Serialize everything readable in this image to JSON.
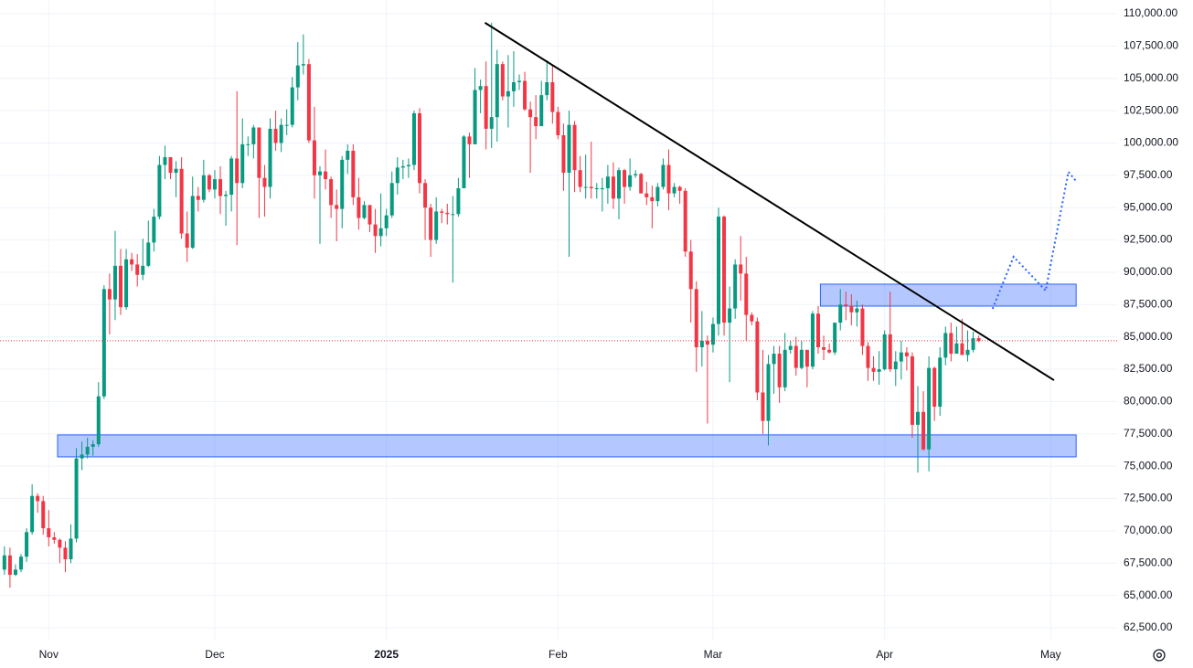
{
  "chart_data": {
    "type": "candlestick",
    "up_color": "#089981",
    "down_color": "#f23645",
    "xlim": [
      -0.8,
      201
    ],
    "ylim": [
      61580,
      111060
    ],
    "xticks": [
      {
        "value": 8,
        "label": "Nov"
      },
      {
        "value": 38,
        "label": "Dec"
      },
      {
        "value": 69,
        "label": "2025"
      },
      {
        "value": 100,
        "label": "Feb"
      },
      {
        "value": 128,
        "label": "Mar"
      },
      {
        "value": 159,
        "label": "Apr"
      },
      {
        "value": 189,
        "label": "May"
      }
    ],
    "yticks": [
      {
        "value": 62500,
        "label": "62,500.00"
      },
      {
        "value": 65000,
        "label": "65,000.00"
      },
      {
        "value": 67500,
        "label": "67,500.00"
      },
      {
        "value": 70000,
        "label": "70,000.00"
      },
      {
        "value": 72500,
        "label": "72,500.00"
      },
      {
        "value": 75000,
        "label": "75,000.00"
      },
      {
        "value": 77500,
        "label": "77,500.00"
      },
      {
        "value": 80000,
        "label": "80,000.00"
      },
      {
        "value": 82500,
        "label": "82,500.00"
      },
      {
        "value": 85000,
        "label": "85,000.00"
      },
      {
        "value": 87500,
        "label": "87,500.00"
      },
      {
        "value": 90000,
        "label": "90,000.00"
      },
      {
        "value": 92500,
        "label": "92,500.00"
      },
      {
        "value": 95000,
        "label": "95,000.00"
      },
      {
        "value": 97500,
        "label": "97,500.00"
      },
      {
        "value": 100000,
        "label": "100,000.00"
      },
      {
        "value": 102500,
        "label": "102,500.00"
      },
      {
        "value": 105000,
        "label": "105,000.00"
      },
      {
        "value": 107500,
        "label": "107,500.00"
      },
      {
        "value": 110000,
        "label": "110,000.00"
      }
    ],
    "grid": true,
    "price_line": true,
    "ohlc": [
      [
        67000,
        68800,
        66600,
        68100
      ],
      [
        68100,
        68700,
        65600,
        66600
      ],
      [
        66600,
        67400,
        66500,
        67000
      ],
      [
        67000,
        68200,
        66800,
        68000
      ],
      [
        68000,
        70200,
        67600,
        69900
      ],
      [
        69900,
        73600,
        69700,
        72700
      ],
      [
        72700,
        72900,
        71400,
        72300
      ],
      [
        72300,
        72700,
        69700,
        70200
      ],
      [
        70200,
        71600,
        68800,
        69500
      ],
      [
        69500,
        69900,
        69000,
        69300
      ],
      [
        69300,
        69400,
        67500,
        68700
      ],
      [
        68700,
        69200,
        66800,
        67800
      ],
      [
        67800,
        70500,
        67500,
        69400
      ],
      [
        69400,
        76400,
        69100,
        75600
      ],
      [
        75600,
        76900,
        74700,
        75900
      ],
      [
        75900,
        77200,
        75600,
        76500
      ],
      [
        76500,
        77000,
        75800,
        76700
      ],
      [
        76700,
        81500,
        76500,
        80400
      ],
      [
        80400,
        89000,
        80200,
        88700
      ],
      [
        88700,
        89900,
        85200,
        87900
      ],
      [
        87900,
        93200,
        86300,
        90500
      ],
      [
        90500,
        91800,
        86700,
        87300
      ],
      [
        87300,
        91800,
        87100,
        91000
      ],
      [
        91000,
        91500,
        90100,
        90600
      ],
      [
        90600,
        91400,
        88900,
        89800
      ],
      [
        89800,
        92600,
        89400,
        90500
      ],
      [
        90500,
        94000,
        90400,
        92300
      ],
      [
        92300,
        94900,
        91600,
        94300
      ],
      [
        94300,
        99000,
        94100,
        98300
      ],
      [
        98300,
        99800,
        97200,
        98900
      ],
      [
        98900,
        98900,
        97200,
        97700
      ],
      [
        97700,
        98600,
        95800,
        98000
      ],
      [
        98000,
        98900,
        92600,
        93000
      ],
      [
        93000,
        94700,
        90800,
        91900
      ],
      [
        91900,
        97400,
        91800,
        95900
      ],
      [
        95900,
        96600,
        94700,
        95600
      ],
      [
        95600,
        98700,
        95400,
        97500
      ],
      [
        97500,
        97600,
        96200,
        96400
      ],
      [
        96400,
        97900,
        95700,
        97200
      ],
      [
        97200,
        98200,
        94500,
        95900
      ],
      [
        95900,
        96300,
        93600,
        96000
      ],
      [
        96000,
        99000,
        94700,
        98800
      ],
      [
        98800,
        104000,
        92100,
        96900
      ],
      [
        96900,
        101900,
        96500,
        99900
      ],
      [
        99900,
        100500,
        99000,
        99900
      ],
      [
        99900,
        101400,
        98800,
        101200
      ],
      [
        101200,
        101200,
        94200,
        97300
      ],
      [
        97300,
        98300,
        94300,
        96600
      ],
      [
        96600,
        101900,
        95700,
        101100
      ],
      [
        101100,
        102500,
        99400,
        100000
      ],
      [
        100000,
        101900,
        99300,
        101400
      ],
      [
        101400,
        102600,
        100600,
        101400
      ],
      [
        101400,
        105100,
        101200,
        104300
      ],
      [
        104300,
        107800,
        103300,
        106000
      ],
      [
        106000,
        108400,
        105300,
        106100
      ],
      [
        106100,
        106500,
        100000,
        100200
      ],
      [
        100200,
        102800,
        95700,
        97500
      ],
      [
        97500,
        98200,
        92200,
        97800
      ],
      [
        97800,
        99500,
        96400,
        97200
      ],
      [
        97200,
        97400,
        94200,
        95200
      ],
      [
        95200,
        96400,
        92400,
        94900
      ],
      [
        94900,
        99000,
        93400,
        98700
      ],
      [
        98700,
        99900,
        97600,
        99400
      ],
      [
        99400,
        99900,
        95200,
        95800
      ],
      [
        95800,
        97300,
        93300,
        94200
      ],
      [
        94200,
        95500,
        94100,
        95200
      ],
      [
        95200,
        95200,
        93100,
        93700
      ],
      [
        93700,
        94900,
        91500,
        92800
      ],
      [
        92800,
        96100,
        92000,
        93400
      ],
      [
        93400,
        94900,
        92800,
        94400
      ],
      [
        94400,
        97800,
        94200,
        96900
      ],
      [
        96900,
        98900,
        96000,
        98100
      ],
      [
        98100,
        98700,
        97200,
        98200
      ],
      [
        98200,
        98800,
        97300,
        98300
      ],
      [
        98300,
        102500,
        97900,
        102300
      ],
      [
        102300,
        102700,
        96100,
        96900
      ],
      [
        96900,
        97200,
        92500,
        95000
      ],
      [
        95000,
        95300,
        91200,
        92500
      ],
      [
        92500,
        95800,
        92200,
        94700
      ],
      [
        94700,
        94900,
        93800,
        94600
      ],
      [
        94600,
        95300,
        93700,
        94500
      ],
      [
        94500,
        95900,
        89200,
        94500
      ],
      [
        94500,
        97300,
        94300,
        96500
      ],
      [
        96500,
        100600,
        96500,
        100500
      ],
      [
        100500,
        100800,
        97300,
        99900
      ],
      [
        99900,
        105800,
        99900,
        104100
      ],
      [
        104100,
        104900,
        102300,
        104400
      ],
      [
        104400,
        106300,
        99500,
        101100
      ],
      [
        101100,
        109300,
        99600,
        102000
      ],
      [
        102000,
        107200,
        100100,
        106100
      ],
      [
        106100,
        106300,
        103300,
        103600
      ],
      [
        103600,
        106800,
        101200,
        104000
      ],
      [
        104000,
        107100,
        102800,
        104700
      ],
      [
        104700,
        105300,
        104100,
        104800
      ],
      [
        104800,
        105500,
        102500,
        102600
      ],
      [
        102600,
        103200,
        97700,
        102000
      ],
      [
        102000,
        103700,
        100300,
        101300
      ],
      [
        101300,
        104800,
        101300,
        103700
      ],
      [
        103700,
        106400,
        103300,
        104700
      ],
      [
        104700,
        106000,
        101500,
        102400
      ],
      [
        102400,
        102800,
        100300,
        100600
      ],
      [
        100600,
        101500,
        96300,
        97700
      ],
      [
        97700,
        102500,
        91200,
        101400
      ],
      [
        101400,
        101700,
        96200,
        97900
      ],
      [
        97900,
        99000,
        96200,
        96600
      ],
      [
        96600,
        99100,
        95700,
        96600
      ],
      [
        96600,
        100100,
        95700,
        96500
      ],
      [
        96500,
        96900,
        95700,
        96500
      ],
      [
        96500,
        97300,
        94700,
        96500
      ],
      [
        96500,
        98300,
        95300,
        97400
      ],
      [
        97400,
        98500,
        94900,
        95700
      ],
      [
        95700,
        98100,
        94100,
        97900
      ],
      [
        97900,
        98000,
        95300,
        96600
      ],
      [
        96600,
        98800,
        96300,
        97500
      ],
      [
        97500,
        97900,
        97300,
        97600
      ],
      [
        97600,
        97700,
        96100,
        96100
      ],
      [
        96100,
        97000,
        95200,
        95800
      ],
      [
        95800,
        96700,
        93400,
        95500
      ],
      [
        95500,
        96900,
        95100,
        96600
      ],
      [
        96600,
        98800,
        96400,
        98300
      ],
      [
        98300,
        99500,
        94800,
        96100
      ],
      [
        96100,
        96900,
        95800,
        96600
      ],
      [
        96600,
        96700,
        95300,
        96300
      ],
      [
        96300,
        96500,
        91200,
        91600
      ],
      [
        91600,
        92500,
        86100,
        88700
      ],
      [
        88700,
        89300,
        82300,
        84200
      ],
      [
        84200,
        87000,
        82700,
        84700
      ],
      [
        84700,
        85100,
        78300,
        84400
      ],
      [
        84400,
        86500,
        83800,
        86000
      ],
      [
        86000,
        95000,
        85100,
        94300
      ],
      [
        94300,
        94400,
        85100,
        86100
      ],
      [
        86100,
        88900,
        81500,
        87200
      ],
      [
        87200,
        91000,
        86400,
        90600
      ],
      [
        90600,
        92800,
        87800,
        89900
      ],
      [
        89900,
        91200,
        84700,
        86700
      ],
      [
        86700,
        86900,
        85900,
        86200
      ],
      [
        86200,
        86500,
        80100,
        80700
      ],
      [
        80700,
        84000,
        77500,
        78500
      ],
      [
        78500,
        83600,
        76600,
        82900
      ],
      [
        82900,
        84300,
        80600,
        83700
      ],
      [
        83700,
        84300,
        79900,
        81100
      ],
      [
        81100,
        85300,
        80800,
        84000
      ],
      [
        84000,
        84700,
        83700,
        84300
      ],
      [
        84300,
        85000,
        82000,
        82600
      ],
      [
        82600,
        84700,
        82500,
        84000
      ],
      [
        84000,
        84000,
        81100,
        82700
      ],
      [
        82700,
        87000,
        82500,
        86800
      ],
      [
        86800,
        87400,
        83700,
        84200
      ],
      [
        84200,
        85100,
        83200,
        84000
      ],
      [
        84000,
        84500,
        83700,
        83800
      ],
      [
        83800,
        86100,
        83600,
        86100
      ],
      [
        86100,
        88700,
        85500,
        87500
      ],
      [
        87500,
        88500,
        86300,
        87400
      ],
      [
        87400,
        88300,
        85900,
        86900
      ],
      [
        86900,
        87800,
        85800,
        87200
      ],
      [
        87200,
        87500,
        83600,
        84300
      ],
      [
        84300,
        84600,
        81600,
        82600
      ],
      [
        82600,
        83500,
        81600,
        82300
      ],
      [
        82300,
        83900,
        81300,
        82500
      ],
      [
        82500,
        85500,
        82400,
        85200
      ],
      [
        85200,
        88500,
        82300,
        82500
      ],
      [
        82500,
        83900,
        81200,
        83100
      ],
      [
        83100,
        84700,
        81700,
        83800
      ],
      [
        83800,
        84200,
        82400,
        83500
      ],
      [
        83500,
        83800,
        77200,
        78200
      ],
      [
        78200,
        81200,
        74500,
        79200
      ],
      [
        79200,
        80800,
        76200,
        76300
      ],
      [
        76300,
        83500,
        74600,
        82600
      ],
      [
        82600,
        82700,
        78500,
        79600
      ],
      [
        79600,
        84200,
        78900,
        83400
      ],
      [
        83400,
        85800,
        82800,
        85300
      ],
      [
        85300,
        86100,
        83100,
        83700
      ],
      [
        83700,
        85800,
        83700,
        84500
      ],
      [
        84500,
        86400,
        83600,
        83600
      ],
      [
        83600,
        85500,
        83100,
        84000
      ],
      [
        84000,
        85400,
        83800,
        84900
      ],
      [
        84900,
        85100,
        84600,
        84700
      ]
    ],
    "annotations": {
      "trendline": {
        "color": "#000000",
        "points": [
          [
            86.8,
            109300
          ],
          [
            189.6,
            81650
          ]
        ]
      },
      "zones": [
        {
          "color": "#2962ff",
          "x": [
            147.4,
            193.6
          ],
          "y": [
            87380,
            89080
          ]
        },
        {
          "color": "#2962ff",
          "x": [
            9.6,
            193.6
          ],
          "y": [
            75720,
            77420
          ]
        }
      ],
      "projection": {
        "color": "#2962ff",
        "points": [
          [
            178.5,
            87170
          ],
          [
            182.3,
            91200
          ],
          [
            188.1,
            88580
          ],
          [
            192.2,
            97770
          ],
          [
            193.7,
            96990
          ]
        ]
      }
    }
  }
}
